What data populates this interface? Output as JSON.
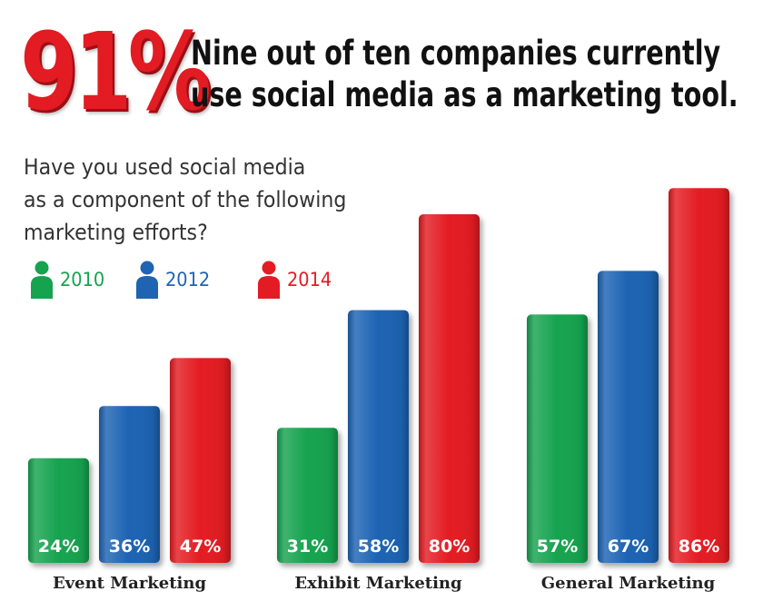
{
  "headline": {
    "big_stat": "91%",
    "line1": "Nine out of ten companies currently",
    "line2": "use social media as a marketing tool."
  },
  "question": "Have you used social media\nas a component of the following\nmarketing efforts?",
  "colors": {
    "accent": "#e31b23",
    "series_2010": "#16a34f",
    "series_2012": "#1f63b3",
    "series_2014": "#e31b23"
  },
  "chart_data": {
    "type": "bar",
    "categories": [
      "Event Marketing",
      "Exhibit Marketing",
      "General Marketing"
    ],
    "series": [
      {
        "name": "2010",
        "values": [
          24,
          31,
          57
        ],
        "labels": [
          "24%",
          "31%",
          "57%"
        ],
        "color": "#16a34f",
        "icon": "person-icon"
      },
      {
        "name": "2012",
        "values": [
          36,
          58,
          67
        ],
        "labels": [
          "36%",
          "58%",
          "67%"
        ],
        "color": "#1f63b3",
        "icon": "person-icon"
      },
      {
        "name": "2014",
        "values": [
          47,
          80,
          86
        ],
        "labels": [
          "47%",
          "80%",
          "86%"
        ],
        "color": "#e31b23",
        "icon": "person-icon"
      }
    ],
    "ylim": [
      0,
      100
    ],
    "grid": false,
    "legend": "top-left"
  }
}
